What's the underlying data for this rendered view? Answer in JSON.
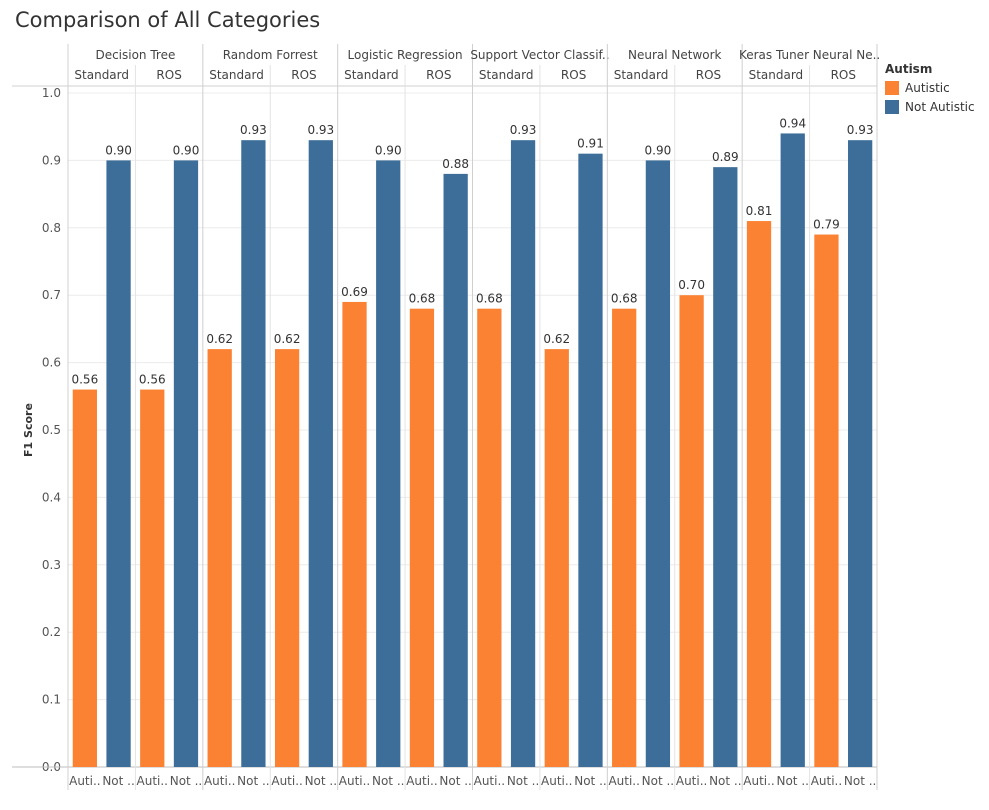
{
  "chart_data": {
    "type": "bar",
    "title": "Comparison of All Categories",
    "ylabel": "F1 Score",
    "ylim": [
      0,
      1.0
    ],
    "yticks": [
      "0.0",
      "0.1",
      "0.2",
      "0.3",
      "0.4",
      "0.5",
      "0.6",
      "0.7",
      "0.8",
      "0.9",
      "1.0"
    ],
    "grid": true,
    "legend": {
      "title": "Autism",
      "position": "right",
      "items": [
        {
          "name": "Autistic",
          "color": "#fa8232"
        },
        {
          "name": "Not Autistic",
          "color": "#3d6e99"
        }
      ]
    },
    "x_tick_labels": [
      "Auti..",
      "Not .."
    ],
    "groups": [
      {
        "label": "Decision Tree",
        "panes": [
          {
            "label": "Standard",
            "values": [
              0.56,
              0.9
            ],
            "labels": [
              "0.56",
              "0.90"
            ]
          },
          {
            "label": "ROS",
            "values": [
              0.56,
              0.9
            ],
            "labels": [
              "0.56",
              "0.90"
            ]
          }
        ]
      },
      {
        "label": "Random Forrest",
        "panes": [
          {
            "label": "Standard",
            "values": [
              0.62,
              0.93
            ],
            "labels": [
              "0.62",
              "0.93"
            ]
          },
          {
            "label": "ROS",
            "values": [
              0.62,
              0.93
            ],
            "labels": [
              "0.62",
              "0.93"
            ]
          }
        ]
      },
      {
        "label": "Logistic Regression",
        "panes": [
          {
            "label": "Standard",
            "values": [
              0.69,
              0.9
            ],
            "labels": [
              "0.69",
              "0.90"
            ]
          },
          {
            "label": "ROS",
            "values": [
              0.68,
              0.88
            ],
            "labels": [
              "0.68",
              "0.88"
            ]
          }
        ]
      },
      {
        "label": "Support Vector Classif..",
        "panes": [
          {
            "label": "Standard",
            "values": [
              0.68,
              0.93
            ],
            "labels": [
              "0.68",
              "0.93"
            ]
          },
          {
            "label": "ROS",
            "values": [
              0.62,
              0.91
            ],
            "labels": [
              "0.62",
              "0.91"
            ]
          }
        ]
      },
      {
        "label": "Neural Network",
        "panes": [
          {
            "label": "Standard",
            "values": [
              0.68,
              0.9
            ],
            "labels": [
              "0.68",
              "0.90"
            ]
          },
          {
            "label": "ROS",
            "values": [
              0.7,
              0.89
            ],
            "labels": [
              "0.70",
              "0.89"
            ]
          }
        ]
      },
      {
        "label": "Keras Tuner Neural Ne..",
        "panes": [
          {
            "label": "Standard",
            "values": [
              0.81,
              0.94
            ],
            "labels": [
              "0.81",
              "0.94"
            ]
          },
          {
            "label": "ROS",
            "values": [
              0.79,
              0.93
            ],
            "labels": [
              "0.79",
              "0.93"
            ]
          }
        ]
      }
    ]
  }
}
